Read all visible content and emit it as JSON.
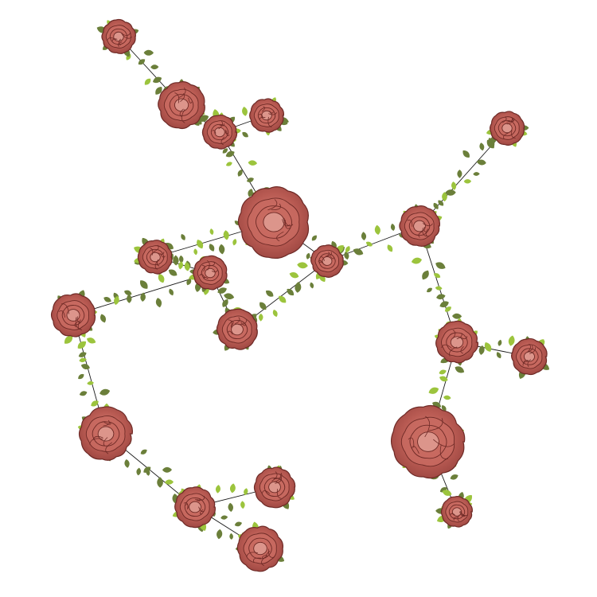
{
  "colors": {
    "background": "#ffffff",
    "edge": "#1a1a1a",
    "leaf_dark": "#6b7f3a",
    "leaf_light": "#9cc43d",
    "rose_outer": "#a9504a",
    "rose_inner": "#c86a60",
    "rose_petal_edge": "#6e2a26",
    "rose_highlight": "#e3a49a"
  },
  "graph": {
    "nodes": [
      {
        "id": "n1"
      },
      {
        "id": "n2"
      },
      {
        "id": "n3"
      },
      {
        "id": "n4"
      },
      {
        "id": "n5"
      },
      {
        "id": "n6"
      },
      {
        "id": "n7"
      },
      {
        "id": "n8"
      },
      {
        "id": "n9"
      },
      {
        "id": "n10"
      },
      {
        "id": "n11"
      },
      {
        "id": "n12"
      },
      {
        "id": "n13"
      },
      {
        "id": "n14"
      },
      {
        "id": "n15"
      },
      {
        "id": "n16"
      },
      {
        "id": "n17"
      },
      {
        "id": "n18"
      },
      {
        "id": "n19"
      },
      {
        "id": "n20"
      },
      {
        "id": "n21"
      }
    ],
    "edges": [
      [
        "n1",
        "n2"
      ],
      [
        "n2",
        "n3"
      ],
      [
        "n3",
        "n4"
      ],
      [
        "n3",
        "n5"
      ],
      [
        "n5",
        "n9"
      ],
      [
        "n5",
        "n8"
      ],
      [
        "n8",
        "n7"
      ],
      [
        "n7",
        "n10"
      ],
      [
        "n7",
        "n11"
      ],
      [
        "n10",
        "n15"
      ],
      [
        "n15",
        "n17"
      ],
      [
        "n17",
        "n18"
      ],
      [
        "n17",
        "n19"
      ],
      [
        "n9",
        "n6"
      ],
      [
        "n6",
        "n14"
      ],
      [
        "n6",
        "n12"
      ],
      [
        "n12",
        "n13"
      ],
      [
        "n12",
        "n16"
      ],
      [
        "n16",
        "n20"
      ],
      [
        "n9",
        "n11"
      ]
    ]
  }
}
